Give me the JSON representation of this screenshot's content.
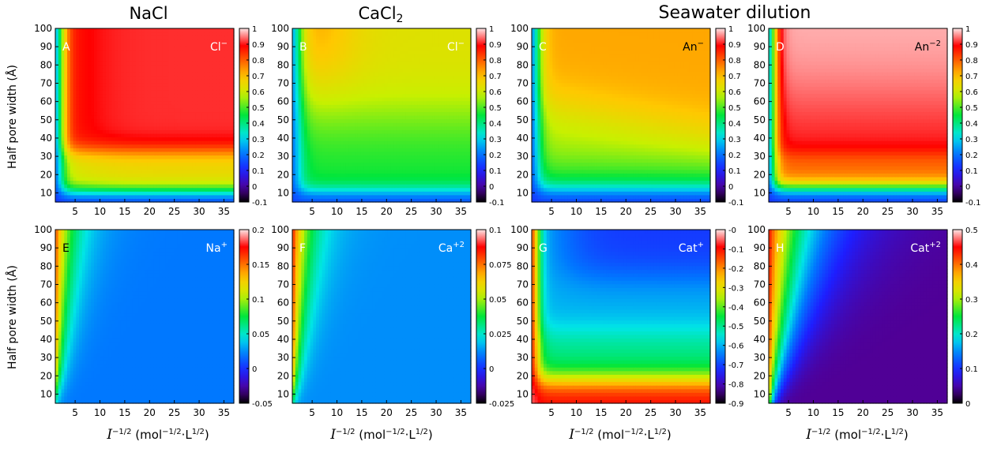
{
  "column_titles": {
    "nacl": "NaCl",
    "cacl2_base": "CaCl",
    "cacl2_sub": "2",
    "seawater": "Seawater dilution"
  },
  "y_label": "Half pore width (Å)",
  "x_label": {
    "symbol": "I",
    "exp": "−1/2",
    "unit_a": " (mol",
    "unit_exp_a": "−1/2",
    "unit_b": "·L",
    "unit_exp_b": "1/2",
    "unit_c": ")"
  },
  "chart_data": [
    {
      "type": "heatmap",
      "panel": "A",
      "species": "Cl",
      "charge": "−",
      "cmap": "rainbow",
      "x_ticks": [
        5,
        10,
        15,
        20,
        25,
        30,
        35
      ],
      "y_ticks": [
        10,
        20,
        30,
        40,
        50,
        60,
        70,
        80,
        90,
        100
      ],
      "xlim": [
        1,
        37
      ],
      "ylim": [
        5,
        100
      ],
      "colorbar_ticks": [
        "1",
        "0.9",
        "0.8",
        "0.7",
        "0.6",
        "0.5",
        "0.4",
        "0.3",
        "0.2",
        "0.1",
        "0",
        "-0.1"
      ],
      "zlim": [
        -0.1,
        1
      ]
    },
    {
      "type": "heatmap",
      "panel": "B",
      "species": "Cl",
      "charge": "−",
      "cmap": "rainbow",
      "x_ticks": [
        5,
        10,
        15,
        20,
        25,
        30,
        35
      ],
      "y_ticks": [
        10,
        20,
        30,
        40,
        50,
        60,
        70,
        80,
        90,
        100
      ],
      "xlim": [
        1,
        37
      ],
      "ylim": [
        5,
        100
      ],
      "colorbar_ticks": [
        "1",
        "0.9",
        "0.8",
        "0.7",
        "0.6",
        "0.5",
        "0.4",
        "0.3",
        "0.2",
        "0.1",
        "0",
        "-0.1"
      ],
      "zlim": [
        -0.1,
        1
      ]
    },
    {
      "type": "heatmap",
      "panel": "C",
      "species": "An",
      "charge": "−",
      "cmap": "rainbow",
      "x_ticks": [
        5,
        10,
        15,
        20,
        25,
        30,
        35
      ],
      "y_ticks": [
        10,
        20,
        30,
        40,
        50,
        60,
        70,
        80,
        90,
        100
      ],
      "xlim": [
        1,
        37
      ],
      "ylim": [
        5,
        100
      ],
      "colorbar_ticks": [
        "1",
        "0.9",
        "0.8",
        "0.7",
        "0.6",
        "0.5",
        "0.4",
        "0.3",
        "0.2",
        "0.1",
        "0",
        "-0.1"
      ],
      "zlim": [
        -0.1,
        1
      ]
    },
    {
      "type": "heatmap",
      "panel": "D",
      "species": "An",
      "charge": "−2",
      "cmap": "rainbow",
      "x_ticks": [
        5,
        10,
        15,
        20,
        25,
        30,
        35
      ],
      "y_ticks": [
        10,
        20,
        30,
        40,
        50,
        60,
        70,
        80,
        90,
        100
      ],
      "xlim": [
        1,
        37
      ],
      "ylim": [
        5,
        100
      ],
      "colorbar_ticks": [
        "1",
        "0.9",
        "0.8",
        "0.7",
        "0.6",
        "0.5",
        "0.4",
        "0.3",
        "0.2",
        "0.1",
        "0",
        "-0.1"
      ],
      "zlim": [
        -0.1,
        1
      ]
    },
    {
      "type": "heatmap",
      "panel": "E",
      "species": "Na",
      "charge": "+",
      "cmap": "rainbow",
      "x_ticks": [
        5,
        10,
        15,
        20,
        25,
        30,
        35
      ],
      "y_ticks": [
        10,
        20,
        30,
        40,
        50,
        60,
        70,
        80,
        90,
        100
      ],
      "xlim": [
        1,
        37
      ],
      "ylim": [
        5,
        100
      ],
      "colorbar_ticks": [
        "0.2",
        "0.15",
        "0.1",
        "0.05",
        "0",
        "-0.05"
      ],
      "zlim": [
        -0.05,
        0.2
      ]
    },
    {
      "type": "heatmap",
      "panel": "F",
      "species": "Ca",
      "charge": "+2",
      "cmap": "rainbow",
      "x_ticks": [
        5,
        10,
        15,
        20,
        25,
        30,
        35
      ],
      "y_ticks": [
        10,
        20,
        30,
        40,
        50,
        60,
        70,
        80,
        90,
        100
      ],
      "xlim": [
        1,
        37
      ],
      "ylim": [
        5,
        100
      ],
      "colorbar_ticks": [
        "0.1",
        "0.075",
        "0.05",
        "0.025",
        "0",
        "-0.025"
      ],
      "zlim": [
        -0.025,
        0.1
      ]
    },
    {
      "type": "heatmap",
      "panel": "G",
      "species": "Cat",
      "charge": "+",
      "cmap": "rainbow",
      "x_ticks": [
        5,
        10,
        15,
        20,
        25,
        30,
        35
      ],
      "y_ticks": [
        10,
        20,
        30,
        40,
        50,
        60,
        70,
        80,
        90,
        100
      ],
      "xlim": [
        1,
        37
      ],
      "ylim": [
        5,
        100
      ],
      "colorbar_ticks": [
        "-0",
        "-0.1",
        "-0.2",
        "-0.3",
        "-0.4",
        "-0.5",
        "-0.6",
        "-0.7",
        "-0.8",
        "-0.9"
      ],
      "zlim": [
        -0.9,
        0
      ]
    },
    {
      "type": "heatmap",
      "panel": "H",
      "species": "Cat",
      "charge": "+2",
      "cmap": "rainbow",
      "x_ticks": [
        5,
        10,
        15,
        20,
        25,
        30,
        35
      ],
      "y_ticks": [
        10,
        20,
        30,
        40,
        50,
        60,
        70,
        80,
        90,
        100
      ],
      "xlim": [
        1,
        37
      ],
      "ylim": [
        5,
        100
      ],
      "colorbar_ticks": [
        "0.5",
        "0.4",
        "0.3",
        "0.2",
        "0.1",
        "0"
      ],
      "zlim": [
        0,
        0.5
      ]
    }
  ]
}
